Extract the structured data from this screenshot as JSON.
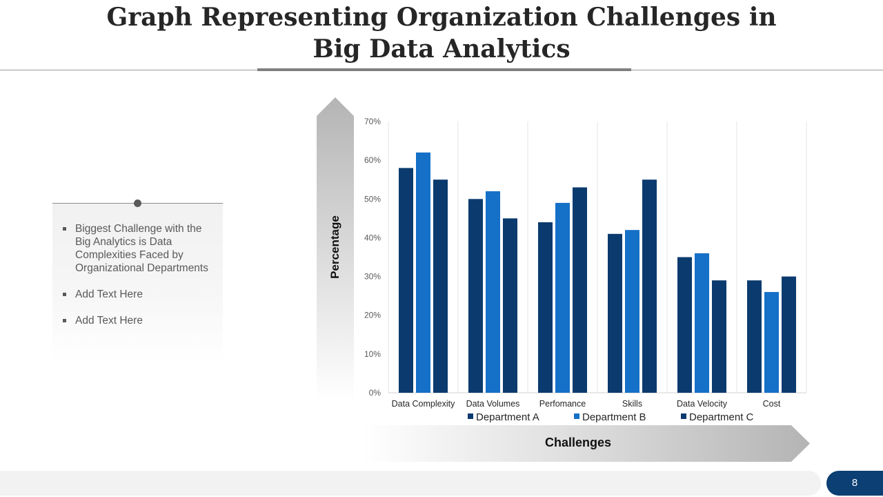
{
  "slide": {
    "title_line1": "Graph Representing Organization Challenges in",
    "title_line2": "Big Data Analytics",
    "bullets": [
      "Biggest Challenge with the Big Analytics is Data Complexities Faced by Organizational Departments",
      "Add Text Here",
      "Add Text Here"
    ],
    "page_number": "8"
  },
  "chart_data": {
    "type": "bar",
    "categories": [
      "Data Complexity",
      "Data Volumes",
      "Perfomance",
      "Skills",
      "Data Velocity",
      "Cost"
    ],
    "series": [
      {
        "name": "Department A",
        "color": "#0b3b6e",
        "values": [
          58,
          50,
          44,
          41,
          35,
          29
        ]
      },
      {
        "name": "Department B",
        "color": "#1570c7",
        "values": [
          62,
          52,
          49,
          42,
          36,
          26
        ]
      },
      {
        "name": "Department C",
        "color": "#0b3b6e",
        "values": [
          55,
          45,
          53,
          55,
          29,
          30
        ]
      }
    ],
    "y_ticks": [
      "0%",
      "10%",
      "20%",
      "30%",
      "40%",
      "50%",
      "60%",
      "70%"
    ],
    "ylim": [
      0,
      70
    ],
    "xlabel": "Challenges",
    "ylabel": "Percentage",
    "grid": "vertical",
    "legend_position": "bottom"
  }
}
